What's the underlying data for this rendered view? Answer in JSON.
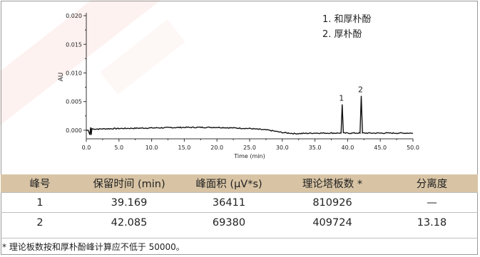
{
  "chart_data": {
    "type": "line",
    "ylabel": "AU",
    "xlabel": "Time (min)",
    "xlim": [
      0,
      50
    ],
    "ylim": [
      -0.0015,
      0.0205
    ],
    "x_ticks": [
      "0.0",
      "5.0",
      "10.0",
      "15.0",
      "20.0",
      "25.0",
      "30.0",
      "35.0",
      "40.0",
      "45.0",
      "50.0"
    ],
    "y_ticks": [
      "0.000",
      "0.005",
      "0.010",
      "0.015",
      "0.020"
    ],
    "peaks": [
      {
        "label": "1",
        "time": 39.169,
        "height": 0.0045
      },
      {
        "label": "2",
        "time": 42.085,
        "height": 0.006
      }
    ],
    "baseline": [
      [
        0.0,
        0.0
      ],
      [
        0.3,
        0.0
      ],
      [
        0.55,
        -0.0008
      ],
      [
        0.65,
        0.0005
      ],
      [
        0.75,
        -0.0008
      ],
      [
        0.85,
        0.0003
      ],
      [
        1.0,
        0.0002
      ],
      [
        5,
        0.0003
      ],
      [
        10,
        0.0004
      ],
      [
        15,
        0.0005
      ],
      [
        20,
        0.0005
      ],
      [
        25,
        0.0003
      ],
      [
        28,
        0.0
      ],
      [
        30,
        -0.0004
      ],
      [
        32,
        -0.0006
      ],
      [
        35,
        -0.0005
      ],
      [
        38,
        -0.0005
      ],
      [
        39.0,
        -0.0005
      ],
      [
        39.17,
        0.0045
      ],
      [
        39.35,
        -0.0005
      ],
      [
        41.9,
        -0.0005
      ],
      [
        42.085,
        0.006
      ],
      [
        42.27,
        -0.0005
      ],
      [
        45,
        -0.0005
      ],
      [
        50,
        -0.0005
      ]
    ]
  },
  "legend": {
    "item1": "1. 和厚朴酚",
    "item2": "2. 厚朴酚"
  },
  "table": {
    "headers": [
      "峰号",
      "保留时间 (min)",
      "峰面积 (μV*s)",
      "理论塔板数 *",
      "分离度"
    ],
    "rows": [
      [
        "1",
        "39.169",
        "36411",
        "810926",
        "—"
      ],
      [
        "2",
        "42.085",
        "69380",
        "409724",
        "13.18"
      ]
    ]
  },
  "note": "* 理论板数按和厚朴酚峰计算应不低于 50000。"
}
